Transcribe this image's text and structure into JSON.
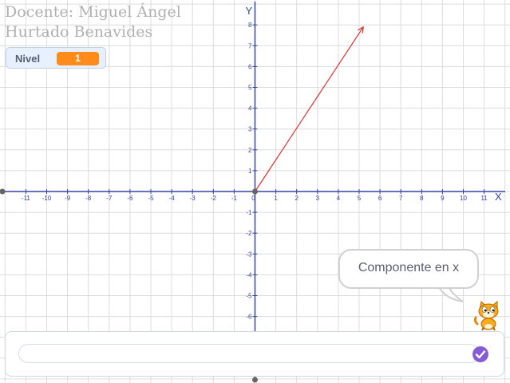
{
  "credit": {
    "line1": "Docente: Miguel Ángel",
    "line2": "Hurtado Benavides"
  },
  "variable_monitor": {
    "name": "Nivel",
    "value": "1"
  },
  "axes": {
    "x_label": "X",
    "y_label": "Y",
    "x_ticks": [
      "-11",
      "-10",
      "-9",
      "-8",
      "-7",
      "-6",
      "-5",
      "-4",
      "-3",
      "-2",
      "-1",
      "0",
      "1",
      "2",
      "3",
      "4",
      "5",
      "6",
      "7",
      "8",
      "9",
      "10",
      "11"
    ],
    "y_ticks_positive": [
      "1",
      "2",
      "3",
      "4",
      "5",
      "6",
      "7",
      "8"
    ],
    "y_ticks_negative": [
      "-1",
      "-2",
      "-3",
      "-4",
      "-5",
      "-6"
    ]
  },
  "vector": {
    "from": [
      0,
      0
    ],
    "to": [
      5.2,
      7.9
    ],
    "color": "#e03030"
  },
  "speech_bubble": {
    "text": "Componente en x"
  },
  "sprite": {
    "icon": "scratch-cat-icon"
  },
  "ask_prompt": {
    "value": "",
    "submit_icon": "check-icon"
  },
  "colors": {
    "axis": "#3545a8",
    "grid": "#dcdcdc",
    "monitor_value": "#ff8c1a",
    "submit": "#855cd6"
  }
}
